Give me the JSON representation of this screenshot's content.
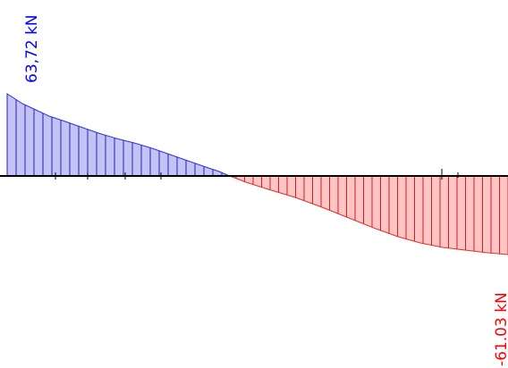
{
  "diagram": {
    "type": "shear-force-diagram",
    "max_label": "63,72 kN",
    "min_label": "-61.03 kN",
    "max_value": 63.72,
    "min_value": -61.03,
    "positive_color": "#0000ff",
    "negative_color": "#ff0000",
    "positive_fill": "#c4c4f4",
    "negative_fill": "#ffc4c4",
    "axis_color": "#000000"
  }
}
